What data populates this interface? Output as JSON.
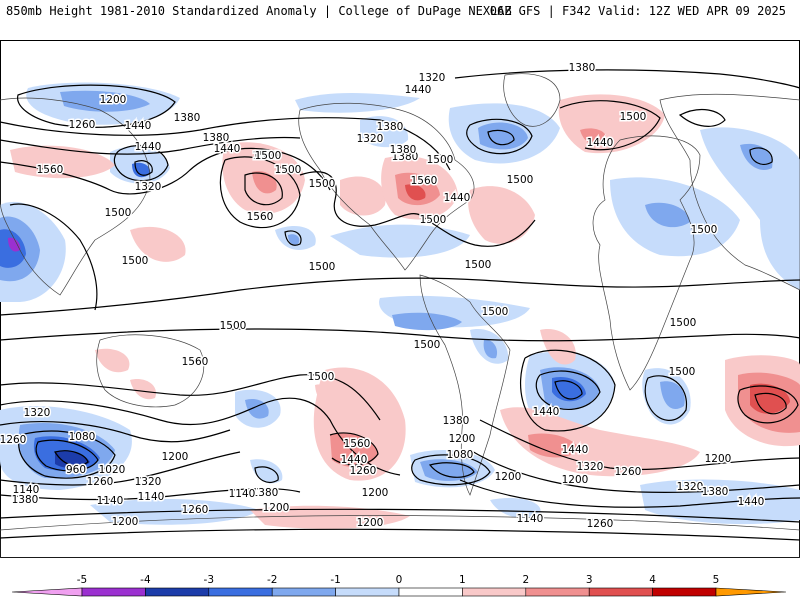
{
  "header": {
    "title_left": "850mb Height 1981-2010 Standardized Anomaly | College of DuPage NEXLAB",
    "title_right": "06Z GFS | F342 Valid: 12Z WED APR 09 2025"
  },
  "map": {
    "contour_labels": [
      "1380",
      "1200",
      "1440",
      "1320",
      "1500",
      "1260",
      "1380",
      "1380",
      "1320",
      "1380",
      "1440",
      "1500",
      "1440",
      "1380",
      "1320",
      "1560",
      "1500",
      "1560",
      "1440",
      "1380",
      "1500",
      "1500",
      "1560",
      "1500",
      "1500",
      "1440",
      "1500",
      "1440",
      "1500",
      "1500",
      "1500",
      "1500",
      "1500",
      "1500",
      "1500",
      "1500",
      "1500",
      "1560",
      "1500",
      "1440",
      "1320",
      "1260",
      "1080",
      "960",
      "1020",
      "1140",
      "1260",
      "1380",
      "1200",
      "1140",
      "1320",
      "1380",
      "1140",
      "1260",
      "1200",
      "1560",
      "1440",
      "1380",
      "1200",
      "1080",
      "1260",
      "1200",
      "1140",
      "1200",
      "1200",
      "1200",
      "1140",
      "1200",
      "1260",
      "1500",
      "1440",
      "1320",
      "1260",
      "1200",
      "1320",
      "1380",
      "1440"
    ]
  },
  "colorbar": {
    "ticks": [
      "-5",
      "-4",
      "-3",
      "-2",
      "-1",
      "0",
      "1",
      "2",
      "3",
      "4",
      "5"
    ],
    "colors": [
      "#f0a0f0",
      "#9b30d0",
      "#1c3caa",
      "#3a6ee0",
      "#7fa8ee",
      "#c6dcfb",
      "#ffffff",
      "#f9c9c9",
      "#f09090",
      "#e05050",
      "#c00000",
      "#ff9900"
    ]
  }
}
